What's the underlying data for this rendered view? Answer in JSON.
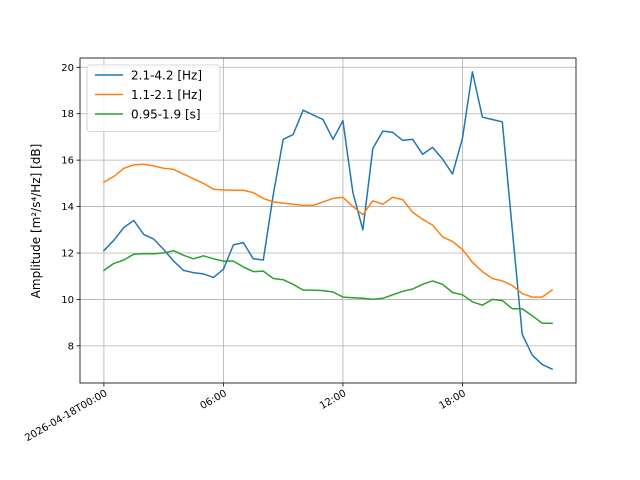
{
  "chart_data": {
    "type": "line",
    "title": "",
    "xlabel": "",
    "ylabel": "Amplitude [m²/s⁴/Hz] [dB]",
    "x_unit": "hours since 2026-04-18T00:00",
    "xlim": [
      -1.2,
      23.7
    ],
    "ylim": [
      6.4,
      20.4
    ],
    "grid": true,
    "legend_position": "upper-left",
    "x_ticks": [
      {
        "value": 0,
        "label": "2026-04-18T00:00"
      },
      {
        "value": 6,
        "label": "06:00"
      },
      {
        "value": 12,
        "label": "12:00"
      },
      {
        "value": 18,
        "label": "18:00"
      }
    ],
    "y_ticks": [
      8,
      10,
      12,
      14,
      16,
      18,
      20
    ],
    "x": [
      0,
      0.5,
      1,
      1.5,
      2,
      2.5,
      3,
      3.5,
      4,
      4.5,
      5,
      5.5,
      6,
      6.5,
      7,
      7.5,
      8,
      8.5,
      9,
      9.5,
      10,
      10.5,
      11,
      11.5,
      12,
      12.5,
      13,
      13.5,
      14,
      14.5,
      15,
      15.5,
      16,
      16.5,
      17,
      17.5,
      18,
      18.5,
      19,
      19.5,
      20,
      20.5,
      21,
      21.5,
      22,
      22.5
    ],
    "series": [
      {
        "name": "2.1-4.2 [Hz]",
        "color": "#1f77b4",
        "values": [
          12.1,
          12.55,
          13.1,
          13.4,
          12.8,
          12.6,
          12.15,
          11.65,
          11.25,
          11.15,
          11.1,
          10.95,
          11.3,
          12.35,
          12.45,
          11.75,
          11.7,
          14.5,
          16.9,
          17.1,
          18.15,
          17.95,
          17.75,
          16.9,
          17.7,
          14.6,
          13.0,
          16.5,
          17.25,
          17.2,
          16.85,
          16.9,
          16.25,
          16.55,
          16.05,
          15.4,
          16.95,
          19.8,
          17.85,
          17.75,
          17.65,
          13.0,
          8.5,
          7.6,
          7.2,
          7.0
        ]
      },
      {
        "name": "1.1-2.1 [Hz]",
        "color": "#ff7f0e",
        "values": [
          15.05,
          15.3,
          15.65,
          15.8,
          15.82,
          15.75,
          15.65,
          15.6,
          15.4,
          15.2,
          15.0,
          14.75,
          14.72,
          14.7,
          14.7,
          14.6,
          14.35,
          14.2,
          14.15,
          14.1,
          14.05,
          14.05,
          14.2,
          14.35,
          14.4,
          14.0,
          13.65,
          14.25,
          14.1,
          14.4,
          14.3,
          13.75,
          13.45,
          13.2,
          12.7,
          12.5,
          12.15,
          11.6,
          11.2,
          10.9,
          10.8,
          10.6,
          10.25,
          10.1,
          10.1,
          10.4
        ]
      },
      {
        "name": "0.95-1.9 [s]",
        "color": "#2ca02c",
        "values": [
          11.25,
          11.55,
          11.7,
          11.95,
          11.97,
          11.97,
          12.0,
          12.1,
          11.9,
          11.75,
          11.88,
          11.75,
          11.65,
          11.65,
          11.4,
          11.2,
          11.22,
          10.9,
          10.85,
          10.65,
          10.4,
          10.4,
          10.38,
          10.32,
          10.1,
          10.07,
          10.05,
          10.0,
          10.05,
          10.2,
          10.35,
          10.45,
          10.65,
          10.8,
          10.65,
          10.3,
          10.2,
          9.9,
          9.75,
          10.0,
          9.95,
          9.6,
          9.6,
          9.3,
          8.98,
          8.97
        ]
      }
    ]
  }
}
